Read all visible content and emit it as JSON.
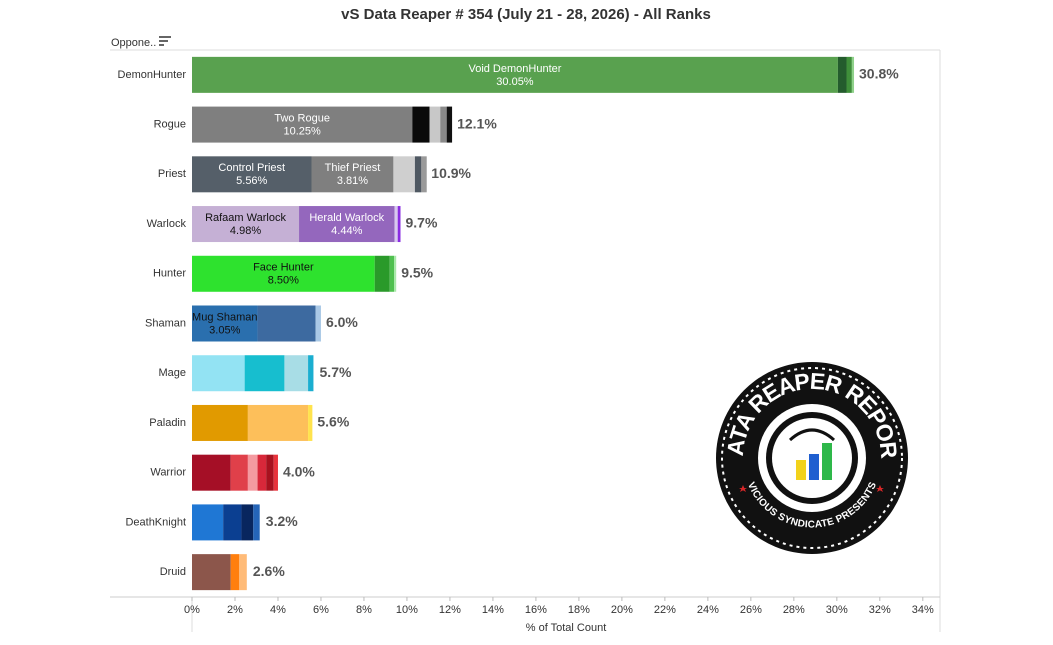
{
  "chart_data": {
    "type": "stacked_bar",
    "orientation": "horizontal",
    "title": "vS Data Reaper # 354 (July 21 - 28, 2026) - All Ranks",
    "row_header": "Oppone..",
    "x_label": "% of Total Count",
    "xlim": [
      0,
      34.8
    ],
    "xticks": [
      {
        "value": 0,
        "label": "0%"
      },
      {
        "value": 2,
        "label": "2%"
      },
      {
        "value": 4,
        "label": "4%"
      },
      {
        "value": 6,
        "label": "6%"
      },
      {
        "value": 8,
        "label": "8%"
      },
      {
        "value": 10,
        "label": "10%"
      },
      {
        "value": 12,
        "label": "12%"
      },
      {
        "value": 14,
        "label": "14%"
      },
      {
        "value": 16,
        "label": "16%"
      },
      {
        "value": 18,
        "label": "18%"
      },
      {
        "value": 20,
        "label": "20%"
      },
      {
        "value": 22,
        "label": "22%"
      },
      {
        "value": 24,
        "label": "24%"
      },
      {
        "value": 26,
        "label": "26%"
      },
      {
        "value": 28,
        "label": "28%"
      },
      {
        "value": 30,
        "label": "30%"
      },
      {
        "value": 32,
        "label": "32%"
      },
      {
        "value": 34,
        "label": "34%"
      }
    ],
    "rows": [
      {
        "category": "DemonHunter",
        "total": 30.8,
        "total_label": "30.8%",
        "segments": [
          {
            "label": "Void DemonHunter",
            "value": 30.05,
            "value_label": "30.05%",
            "color": "#59a14f",
            "text_color": "#ffffff"
          },
          {
            "value": 0.4,
            "color": "#245c2d"
          },
          {
            "value": 0.25,
            "color": "#3f8f3a"
          },
          {
            "value": 0.1,
            "color": "#8fd18a"
          }
        ]
      },
      {
        "category": "Rogue",
        "total": 12.1,
        "total_label": "12.1%",
        "segments": [
          {
            "label": "Two Rogue",
            "value": 10.25,
            "value_label": "10.25%",
            "color": "#7f7f7f",
            "text_color": "#ffffff"
          },
          {
            "value": 0.8,
            "color": "#0a0a0a"
          },
          {
            "value": 0.5,
            "color": "#c8c8c8"
          },
          {
            "value": 0.3,
            "color": "#8a8a8a"
          },
          {
            "value": 0.25,
            "color": "#111111"
          }
        ]
      },
      {
        "category": "Priest",
        "total": 10.9,
        "total_label": "10.9%",
        "segments": [
          {
            "label": "Control Priest",
            "value": 5.56,
            "value_label": "5.56%",
            "color": "#555f69",
            "text_color": "#ffffff"
          },
          {
            "label": "Thief Priest",
            "value": 3.81,
            "value_label": "3.81%",
            "color": "#7f7f7f",
            "text_color": "#ffffff"
          },
          {
            "value": 1.0,
            "color": "#cfcfcf"
          },
          {
            "value": 0.3,
            "color": "#4f5862"
          },
          {
            "value": 0.25,
            "color": "#9a9a9a"
          }
        ]
      },
      {
        "category": "Warlock",
        "total": 9.7,
        "total_label": "9.7%",
        "segments": [
          {
            "label": "Rafaam Warlock",
            "value": 4.98,
            "value_label": "4.98%",
            "color": "#c5b0d5",
            "text_color": "#111111"
          },
          {
            "label": "Herald Warlock",
            "value": 4.44,
            "value_label": "4.44%",
            "color": "#9467bd",
            "text_color": "#ffffff"
          },
          {
            "value": 0.15,
            "color": "#d8c8ef"
          },
          {
            "value": 0.13,
            "color": "#8a2be2"
          }
        ]
      },
      {
        "category": "Hunter",
        "total": 9.5,
        "total_label": "9.5%",
        "segments": [
          {
            "label": "Face Hunter",
            "value": 8.5,
            "value_label": "8.50%",
            "color": "#2ee22e",
            "text_color": "#111111"
          },
          {
            "value": 0.7,
            "color": "#2a9a2a"
          },
          {
            "value": 0.2,
            "color": "#4fc04f"
          },
          {
            "value": 0.1,
            "color": "#a8e8a8"
          }
        ]
      },
      {
        "category": "Shaman",
        "total": 6.0,
        "total_label": "6.0%",
        "segments": [
          {
            "label": "Mug Shaman",
            "value": 3.05,
            "value_label": "3.05%",
            "color": "#2a6fae",
            "text_color": "#111111"
          },
          {
            "value": 2.7,
            "color": "#3d6aa0"
          },
          {
            "value": 0.25,
            "color": "#a9c8e6"
          }
        ]
      },
      {
        "category": "Mage",
        "total": 5.7,
        "total_label": "5.7%",
        "segments": [
          {
            "value": 2.45,
            "color": "#93e3f3"
          },
          {
            "value": 1.85,
            "color": "#17becf"
          },
          {
            "value": 1.1,
            "color": "#a8dde6"
          },
          {
            "value": 0.25,
            "color": "#1aaed0"
          }
        ]
      },
      {
        "category": "Paladin",
        "total": 5.6,
        "total_label": "5.6%",
        "segments": [
          {
            "value": 2.6,
            "color": "#e19a00"
          },
          {
            "value": 2.8,
            "color": "#fdbf5a"
          },
          {
            "value": 0.2,
            "color": "#ffe34d"
          }
        ]
      },
      {
        "category": "Warrior",
        "total": 4.0,
        "total_label": "4.0%",
        "segments": [
          {
            "value": 1.8,
            "color": "#a50f26"
          },
          {
            "value": 0.8,
            "color": "#e0404a"
          },
          {
            "value": 0.45,
            "color": "#f49aa0"
          },
          {
            "value": 0.4,
            "color": "#d8283a"
          },
          {
            "value": 0.35,
            "color": "#a8121f"
          },
          {
            "value": 0.2,
            "color": "#e8333c"
          }
        ]
      },
      {
        "category": "DeathKnight",
        "total": 3.2,
        "total_label": "3.2%",
        "segments": [
          {
            "value": 1.45,
            "color": "#1f77d4"
          },
          {
            "value": 0.85,
            "color": "#0b3f91"
          },
          {
            "value": 0.55,
            "color": "#08265e"
          },
          {
            "value": 0.3,
            "color": "#2565b8"
          }
        ]
      },
      {
        "category": "Druid",
        "total": 2.6,
        "total_label": "2.6%",
        "segments": [
          {
            "value": 1.8,
            "color": "#8c564b"
          },
          {
            "value": 0.4,
            "color": "#ff7f0e"
          },
          {
            "value": 0.35,
            "color": "#ffbb78"
          }
        ]
      }
    ]
  },
  "logo": {
    "title": "DATA REAPER REPORT",
    "subtitle": "VICIOUS SYNDICATE PRESENTS"
  }
}
